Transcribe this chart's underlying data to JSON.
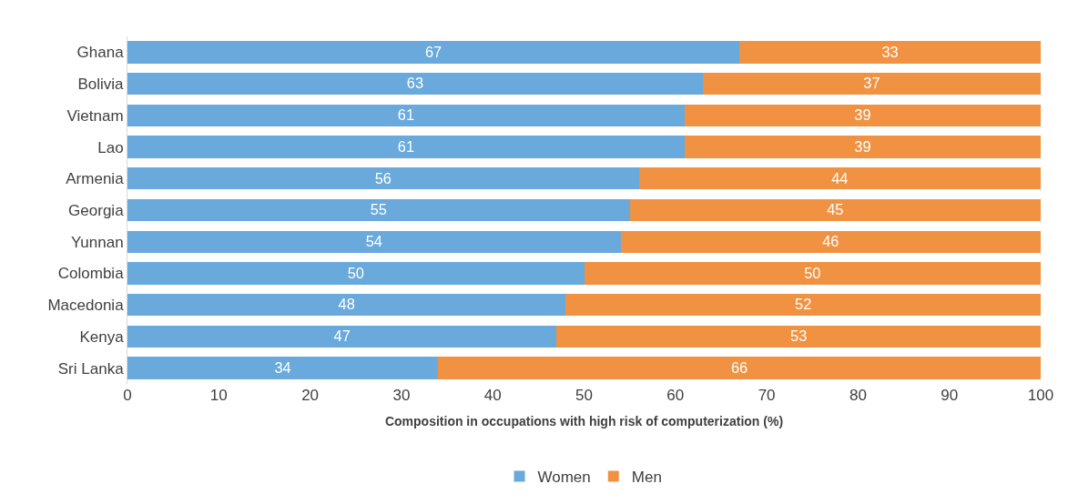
{
  "chart_data": {
    "type": "bar",
    "orientation": "horizontal",
    "stacked": true,
    "categories": [
      "Ghana",
      "Bolivia",
      "Vietnam",
      "Lao",
      "Armenia",
      "Georgia",
      "Yunnan",
      "Colombia",
      "Macedonia",
      "Kenya",
      "Sri Lanka"
    ],
    "series": [
      {
        "name": "Women",
        "color": "#69a9dc",
        "values": [
          67,
          63,
          61,
          61,
          56,
          55,
          54,
          50,
          48,
          47,
          34
        ]
      },
      {
        "name": "Men",
        "color": "#f19242",
        "values": [
          33,
          37,
          39,
          39,
          44,
          45,
          46,
          50,
          52,
          53,
          66
        ]
      }
    ],
    "xlabel": "Composition in occupations with high risk of computerization (%)",
    "xlim": [
      0,
      100
    ],
    "xticks": [
      0,
      10,
      20,
      30,
      40,
      50,
      60,
      70,
      80,
      90,
      100
    ],
    "data_labels": true,
    "legend": "bottom"
  }
}
